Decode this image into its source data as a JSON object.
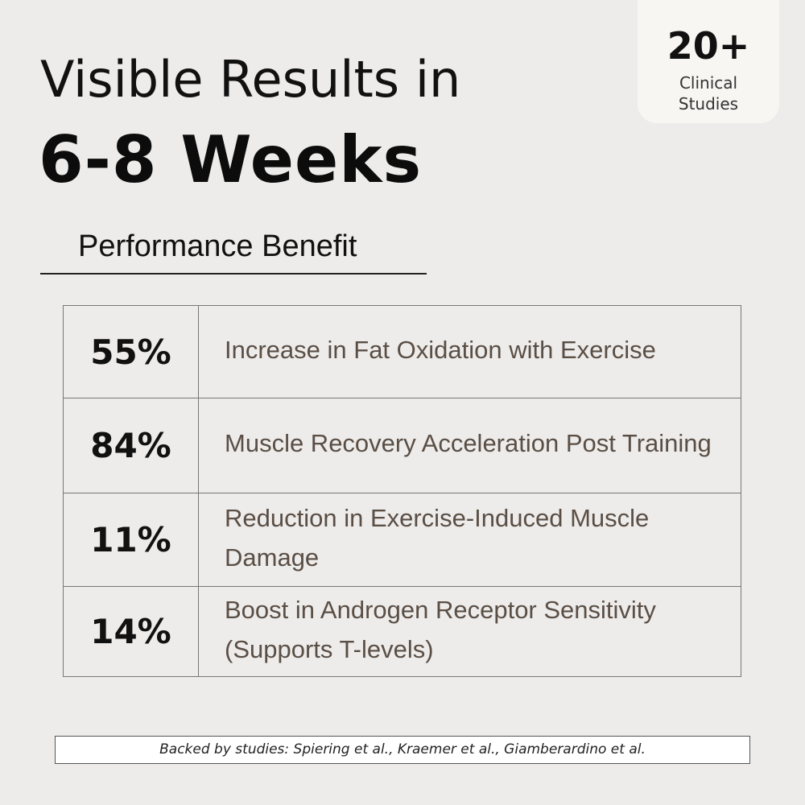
{
  "badge": {
    "number": "20+",
    "label": "Clinical\nStudies"
  },
  "title": {
    "line1": "Visible Results in",
    "line2": "6-8 Weeks"
  },
  "section": {
    "heading": "Performance Benefit"
  },
  "benefits": [
    {
      "value": "55%",
      "description": "Increase in Fat Oxidation with Exercise"
    },
    {
      "value": "84%",
      "description": "Muscle Recovery Acceleration Post Training"
    },
    {
      "value": "11%",
      "description": "Reduction in Exercise-Induced Muscle Damage"
    },
    {
      "value": "14%",
      "description": "Boost in Androgen Receptor Sensitivity (Supports T-levels)"
    }
  ],
  "footer": {
    "text": "Backed by studies: Spiering et al., Kraemer et al., Giamberardino et al."
  },
  "colors": {
    "background": "#edecea",
    "badge_background": "#f7f6f3",
    "description_text": "#5a4e45",
    "heading_text": "#111111"
  }
}
